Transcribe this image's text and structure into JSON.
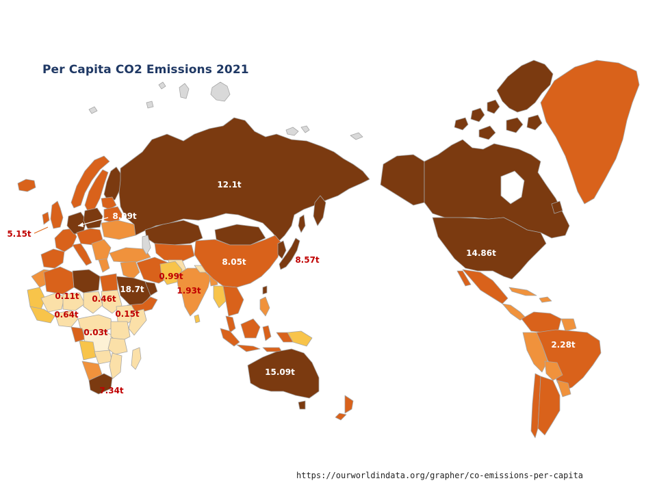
{
  "title": "Per Capita CO2 Emissions 2021",
  "source": "https://ourworldindata.org/grapher/co-emissions-per-capita",
  "colors": {
    "very_high": "#7b3a10",
    "high": "#d9621b",
    "medium": "#f0923c",
    "low": "#f8c44a",
    "very_low": "#fbe0a8",
    "minimal": "#fdf1d5",
    "no_data": "#d9d9d9",
    "border": "#a6a6a6",
    "label_light": "#ffffff",
    "label_dark": "#c00000"
  },
  "labels": {
    "russia": "12.1t",
    "europe": "8.09t",
    "uk": "5.15t",
    "china": "8.05t",
    "japan": "8.57t",
    "india": "1.93t",
    "pakistan": "0.99t",
    "saudi": "18.7t",
    "usa": "14.86t",
    "brazil": "2.28t",
    "australia": "15.09t",
    "niger": "0.11t",
    "nigeria": "0.64t",
    "sudan": "0.46t",
    "ethiopia": "0.15t",
    "drc": "0.03t",
    "south_africa": "7.34t"
  }
}
